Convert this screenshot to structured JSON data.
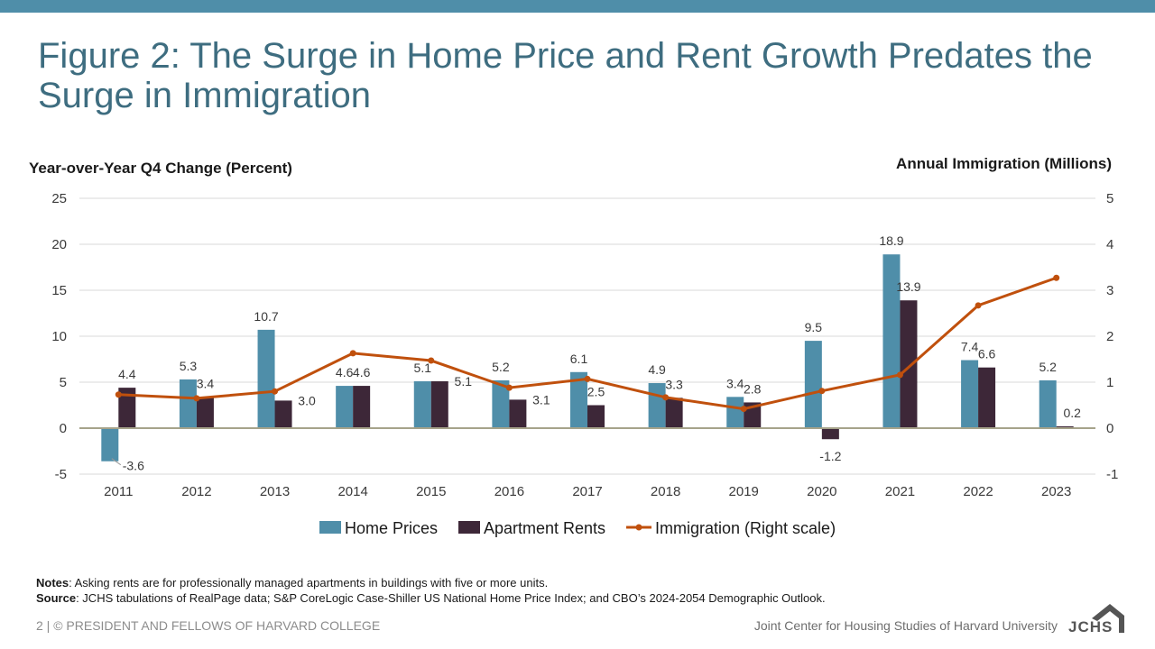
{
  "header": {
    "title": "Figure 2: The Surge in Home Price and Rent Growth Predates the Surge in Immigration"
  },
  "colors": {
    "accent_bar": "#4f8ea9",
    "title": "#3e6d80",
    "home_prices": "#4f8ea9",
    "apartment_rents": "#3d2738",
    "immigration": "#c0500d",
    "gridline": "#d9d9d9",
    "zero_line": "#a6a38a"
  },
  "chart_data": {
    "type": "bar",
    "ylabel": "Year-over-Year Q4 Change (Percent)",
    "y2label": "Annual Immigration (Millions)",
    "ylim": [
      -5,
      25
    ],
    "y_ticks": [
      "-5",
      "0",
      "5",
      "10",
      "15",
      "20",
      "25"
    ],
    "y2lim": [
      -1,
      5
    ],
    "y2_ticks": [
      "-1",
      "0",
      "1",
      "2",
      "3",
      "4",
      "5"
    ],
    "grid": true,
    "legend_position": "bottom",
    "categories": [
      "2011",
      "2012",
      "2013",
      "2014",
      "2015",
      "2016",
      "2017",
      "2018",
      "2019",
      "2020",
      "2021",
      "2022",
      "2023"
    ],
    "series": [
      {
        "name": "Home Prices",
        "type": "bar",
        "axis": "left",
        "values": [
          -3.6,
          5.3,
          10.7,
          4.6,
          5.1,
          5.2,
          6.1,
          4.9,
          3.4,
          9.5,
          18.9,
          7.4,
          5.2
        ],
        "labels": [
          "-3.6",
          "5.3",
          "10.7",
          "4.6",
          "5.1",
          "5.2",
          "6.1",
          "4.9",
          "3.4",
          "9.5",
          "18.9",
          "7.4",
          "5.2"
        ]
      },
      {
        "name": "Apartment Rents",
        "type": "bar",
        "axis": "left",
        "values": [
          4.4,
          3.4,
          3.0,
          4.6,
          5.1,
          3.1,
          2.5,
          3.3,
          2.8,
          -1.2,
          13.9,
          6.6,
          0.2
        ],
        "labels": [
          "4.4",
          "3.4",
          "3.0",
          "4.6",
          "5.1",
          "3.1",
          "2.5",
          "3.3",
          "2.8",
          "-1.2",
          "13.9",
          "6.6",
          "0.2"
        ]
      },
      {
        "name": "Immigration (Right scale)",
        "type": "line",
        "axis": "right",
        "values": [
          0.73,
          0.65,
          0.8,
          1.63,
          1.47,
          0.88,
          1.07,
          0.67,
          0.42,
          0.81,
          1.16,
          2.67,
          3.27
        ]
      }
    ]
  },
  "notes": {
    "notes_label": "Notes",
    "notes_text": ": Asking rents are for professionally managed apartments in buildings with five or more units.",
    "source_label": "Source",
    "source_text": ": JCHS tabulations of RealPage data; S&P CoreLogic Case-Shiller US National Home Price Index; and CBO’s 2024-2054 Demographic Outlook."
  },
  "footer": {
    "left": "2 | © PRESIDENT AND FELLOWS OF HARVARD COLLEGE",
    "right": "Joint Center for Housing Studies of Harvard University",
    "logo_text": "JCHS"
  }
}
